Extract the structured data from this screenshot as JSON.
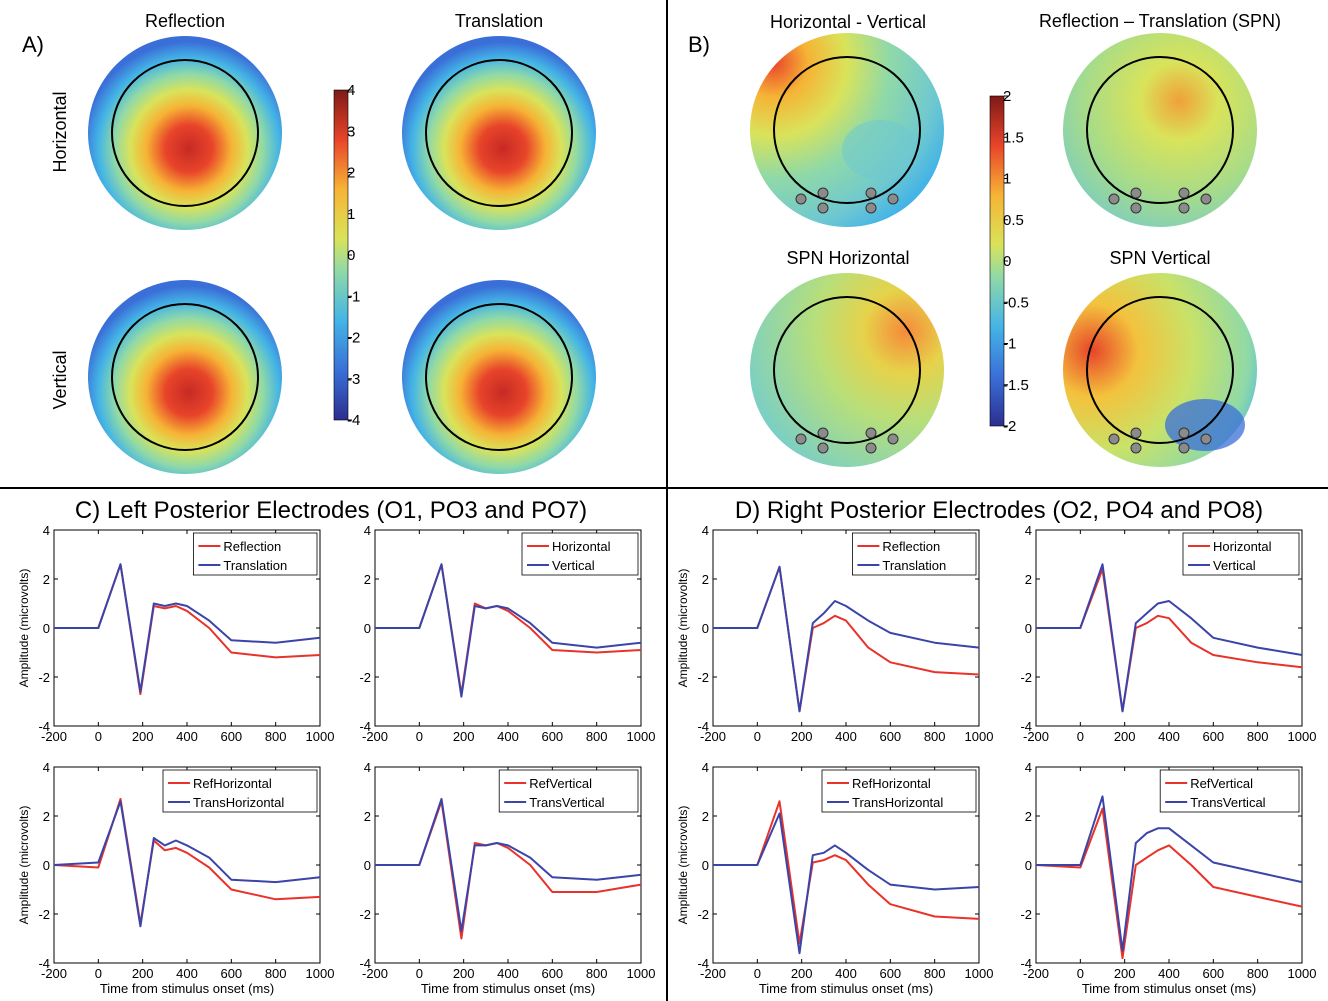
{
  "panels": {
    "a_label": "A)",
    "b_label": "B)",
    "a_columns": [
      "Reflection",
      "Translation"
    ],
    "a_rows": [
      "Horizontal",
      "Vertical"
    ],
    "b_titles": [
      "Horizontal - Vertical",
      "Reflection – Translation (SPN)",
      "SPN Horizontal",
      "SPN Vertical"
    ],
    "colorbar_a": {
      "range": [
        -4,
        4
      ],
      "ticks": [
        "4",
        "3",
        "2",
        "1",
        "0",
        "-1",
        "-2",
        "-3",
        "-4"
      ]
    },
    "colorbar_b": {
      "range": [
        -2,
        2
      ],
      "ticks": [
        "2",
        "1.5",
        "1",
        "0.5",
        "0",
        "-0.5",
        "-1",
        "-1.5",
        "-2"
      ]
    },
    "c_title": "C) Left Posterior Electrodes (O1, PO3 and PO7)",
    "d_title": "D) Right Posterior Electrodes (O2, PO4 and PO8)"
  },
  "colors": {
    "red": "#e8322a",
    "blue": "#3b44a8"
  },
  "chart_data": [
    {
      "type": "line",
      "id": "C1",
      "x": [
        -200,
        0,
        100,
        190,
        250,
        300,
        350,
        400,
        500,
        600,
        800,
        1000
      ],
      "xlim": [
        -200,
        1000
      ],
      "ylim": [
        -4,
        4
      ],
      "xticks": [
        -200,
        0,
        200,
        400,
        600,
        800,
        1000
      ],
      "yticks": [
        4,
        2,
        0,
        -2,
        -4
      ],
      "xlabel": "",
      "ylabel": "Amplitude (microvolts)",
      "series": [
        {
          "name": "Reflection",
          "color": "#e8322a",
          "values": [
            0,
            0,
            2.6,
            -2.7,
            0.9,
            0.8,
            0.9,
            0.7,
            0,
            -1,
            -1.2,
            -1.1
          ]
        },
        {
          "name": "Translation",
          "color": "#3b44a8",
          "values": [
            0,
            0,
            2.6,
            -2.6,
            1,
            0.9,
            1,
            0.9,
            0.3,
            -0.5,
            -0.6,
            -0.4
          ]
        }
      ]
    },
    {
      "type": "line",
      "id": "C2",
      "x": [
        -200,
        0,
        100,
        190,
        250,
        300,
        350,
        400,
        500,
        600,
        800,
        1000
      ],
      "xlim": [
        -200,
        1000
      ],
      "ylim": [
        -4,
        4
      ],
      "xticks": [
        -200,
        0,
        200,
        400,
        600,
        800,
        1000
      ],
      "yticks": [
        4,
        2,
        0,
        -2,
        -4
      ],
      "xlabel": "",
      "ylabel": "",
      "series": [
        {
          "name": "Horizontal",
          "color": "#e8322a",
          "values": [
            0,
            0,
            2.6,
            -2.7,
            1,
            0.8,
            0.9,
            0.7,
            0,
            -0.9,
            -1,
            -0.9
          ]
        },
        {
          "name": "Vertical",
          "color": "#3b44a8",
          "values": [
            0,
            0,
            2.6,
            -2.8,
            0.9,
            0.8,
            0.9,
            0.8,
            0.2,
            -0.6,
            -0.8,
            -0.6
          ]
        }
      ]
    },
    {
      "type": "line",
      "id": "D1",
      "x": [
        -200,
        0,
        100,
        190,
        250,
        300,
        350,
        400,
        500,
        600,
        800,
        1000
      ],
      "xlim": [
        -200,
        1000
      ],
      "ylim": [
        -4,
        4
      ],
      "xticks": [
        -200,
        0,
        200,
        400,
        600,
        800,
        1000
      ],
      "yticks": [
        4,
        2,
        0,
        -2,
        -4
      ],
      "xlabel": "",
      "ylabel": "Amplitude (microvolts)",
      "series": [
        {
          "name": "Reflection",
          "color": "#e8322a",
          "values": [
            0,
            0,
            2.5,
            -3.4,
            0,
            0.2,
            0.5,
            0.3,
            -0.8,
            -1.4,
            -1.8,
            -1.9
          ]
        },
        {
          "name": "Translation",
          "color": "#3b44a8",
          "values": [
            0,
            0,
            2.5,
            -3.4,
            0.2,
            0.6,
            1.1,
            0.9,
            0.3,
            -0.2,
            -0.6,
            -0.8
          ]
        }
      ]
    },
    {
      "type": "line",
      "id": "D2",
      "x": [
        -200,
        0,
        100,
        190,
        250,
        300,
        350,
        400,
        500,
        600,
        800,
        1000
      ],
      "xlim": [
        -200,
        1000
      ],
      "ylim": [
        -4,
        4
      ],
      "xticks": [
        -200,
        0,
        200,
        400,
        600,
        800,
        1000
      ],
      "yticks": [
        4,
        2,
        0,
        -2,
        -4
      ],
      "xlabel": "",
      "ylabel": "",
      "series": [
        {
          "name": "Horizontal",
          "color": "#e8322a",
          "values": [
            0,
            0,
            2.4,
            -3.4,
            0,
            0.2,
            0.5,
            0.4,
            -0.6,
            -1.1,
            -1.4,
            -1.6
          ]
        },
        {
          "name": "Vertical",
          "color": "#3b44a8",
          "values": [
            0,
            0,
            2.6,
            -3.4,
            0.2,
            0.6,
            1,
            1.1,
            0.4,
            -0.4,
            -0.8,
            -1.1
          ]
        }
      ]
    },
    {
      "type": "line",
      "id": "C3",
      "x": [
        -200,
        0,
        100,
        190,
        250,
        300,
        350,
        400,
        500,
        600,
        800,
        1000
      ],
      "xlim": [
        -200,
        1000
      ],
      "ylim": [
        -4,
        4
      ],
      "xticks": [
        -200,
        0,
        200,
        400,
        600,
        800,
        1000
      ],
      "yticks": [
        4,
        2,
        0,
        -2,
        -4
      ],
      "xlabel": "Time from stimulus onset (ms)",
      "ylabel": "Amplitude (microvolts)",
      "series": [
        {
          "name": "RefHorizontal",
          "color": "#e8322a",
          "values": [
            0,
            -0.1,
            2.7,
            -2.4,
            1,
            0.6,
            0.7,
            0.5,
            -0.1,
            -1,
            -1.4,
            -1.3
          ]
        },
        {
          "name": "TransHorizontal",
          "color": "#3b44a8",
          "values": [
            0,
            0.1,
            2.6,
            -2.5,
            1.1,
            0.8,
            1,
            0.8,
            0.3,
            -0.6,
            -0.7,
            -0.5
          ]
        }
      ]
    },
    {
      "type": "line",
      "id": "C4",
      "x": [
        -200,
        0,
        100,
        190,
        250,
        300,
        350,
        400,
        500,
        600,
        800,
        1000
      ],
      "xlim": [
        -200,
        1000
      ],
      "ylim": [
        -4,
        4
      ],
      "xticks": [
        -200,
        0,
        200,
        400,
        600,
        800,
        1000
      ],
      "yticks": [
        4,
        2,
        0,
        -2,
        -4
      ],
      "xlabel": "Time from stimulus onset (ms)",
      "ylabel": "",
      "series": [
        {
          "name": "RefVertical",
          "color": "#e8322a",
          "values": [
            0,
            0,
            2.6,
            -3,
            0.9,
            0.8,
            0.9,
            0.7,
            0,
            -1.1,
            -1.1,
            -0.8
          ]
        },
        {
          "name": "TransVertical",
          "color": "#3b44a8",
          "values": [
            0,
            0,
            2.7,
            -2.7,
            0.8,
            0.8,
            0.9,
            0.8,
            0.3,
            -0.5,
            -0.6,
            -0.4
          ]
        }
      ]
    },
    {
      "type": "line",
      "id": "D3",
      "x": [
        -200,
        0,
        100,
        190,
        250,
        300,
        350,
        400,
        500,
        600,
        800,
        1000
      ],
      "xlim": [
        -200,
        1000
      ],
      "ylim": [
        -4,
        4
      ],
      "xticks": [
        -200,
        0,
        200,
        400,
        600,
        800,
        1000
      ],
      "yticks": [
        4,
        2,
        0,
        -2,
        -4
      ],
      "xlabel": "Time from stimulus onset (ms)",
      "ylabel": "Amplitude (microvolts)",
      "series": [
        {
          "name": "RefHorizontal",
          "color": "#e8322a",
          "values": [
            0,
            0,
            2.6,
            -3.2,
            0.1,
            0.2,
            0.4,
            0.2,
            -0.8,
            -1.6,
            -2.1,
            -2.2
          ]
        },
        {
          "name": "TransHorizontal",
          "color": "#3b44a8",
          "values": [
            0,
            0,
            2.1,
            -3.6,
            0.4,
            0.5,
            0.8,
            0.5,
            -0.2,
            -0.8,
            -1,
            -0.9
          ]
        }
      ]
    },
    {
      "type": "line",
      "id": "D4",
      "x": [
        -200,
        0,
        100,
        190,
        250,
        300,
        350,
        400,
        500,
        600,
        800,
        1000
      ],
      "xlim": [
        -200,
        1000
      ],
      "ylim": [
        -4,
        4
      ],
      "xticks": [
        -200,
        0,
        200,
        400,
        600,
        800,
        1000
      ],
      "yticks": [
        4,
        2,
        0,
        -2,
        -4
      ],
      "xlabel": "Time from stimulus onset (ms)",
      "ylabel": "",
      "series": [
        {
          "name": "RefVertical",
          "color": "#e8322a",
          "values": [
            0,
            -0.1,
            2.3,
            -3.8,
            0,
            0.3,
            0.6,
            0.8,
            0,
            -0.9,
            -1.3,
            -1.7
          ]
        },
        {
          "name": "TransVertical",
          "color": "#3b44a8",
          "values": [
            0,
            0,
            2.8,
            -3.5,
            0.9,
            1.3,
            1.5,
            1.5,
            0.8,
            0.1,
            -0.3,
            -0.7
          ]
        }
      ]
    }
  ]
}
